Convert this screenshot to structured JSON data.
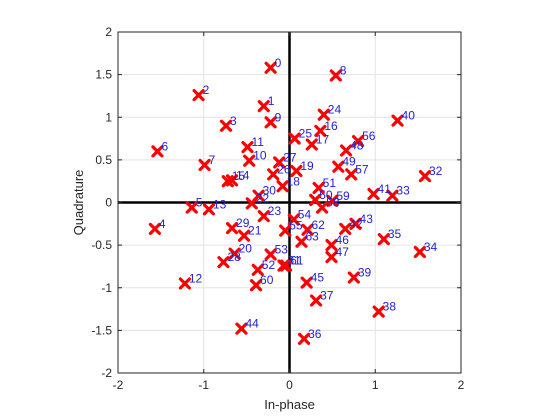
{
  "chart_data": {
    "type": "scatter",
    "xlabel": "In-phase",
    "ylabel": "Quadrature",
    "xlim": [
      -2,
      2
    ],
    "ylim": [
      -2,
      2
    ],
    "xticks": [
      -2,
      -1,
      0,
      1,
      2
    ],
    "yticks": [
      -2,
      -1.5,
      -1,
      -0.5,
      0,
      0.5,
      1,
      1.5,
      2
    ],
    "grid": true,
    "marker": "x",
    "marker_color": "#ff0000",
    "label_color": "#1f1fd6",
    "axis_line_color": "#000000",
    "points": [
      {
        "label": "0",
        "x": -0.22,
        "y": 1.58
      },
      {
        "label": "1",
        "x": -0.3,
        "y": 1.13
      },
      {
        "label": "2",
        "x": -1.06,
        "y": 1.26
      },
      {
        "label": "3",
        "x": -0.74,
        "y": 0.9
      },
      {
        "label": "4",
        "x": -1.57,
        "y": -0.31
      },
      {
        "label": "5",
        "x": -1.14,
        "y": -0.06
      },
      {
        "label": "6",
        "x": -1.54,
        "y": 0.6
      },
      {
        "label": "7",
        "x": -0.99,
        "y": 0.44
      },
      {
        "label": "8",
        "x": 0.54,
        "y": 1.49
      },
      {
        "label": "9",
        "x": -0.22,
        "y": 0.94
      },
      {
        "label": "10",
        "x": -0.47,
        "y": 0.49
      },
      {
        "label": "11",
        "x": -0.49,
        "y": 0.65
      },
      {
        "label": "12",
        "x": -1.22,
        "y": -0.95
      },
      {
        "label": "13",
        "x": -0.94,
        "y": -0.08
      },
      {
        "label": "14",
        "x": -0.67,
        "y": 0.26
      },
      {
        "label": "15",
        "x": -0.72,
        "y": 0.25
      },
      {
        "label": "16",
        "x": 0.36,
        "y": 0.84
      },
      {
        "label": "17",
        "x": 0.26,
        "y": 0.68
      },
      {
        "label": "18",
        "x": -0.08,
        "y": 0.19
      },
      {
        "label": "19",
        "x": 0.08,
        "y": 0.37
      },
      {
        "label": "20",
        "x": -0.64,
        "y": -0.6
      },
      {
        "label": "21",
        "x": -0.53,
        "y": -0.39
      },
      {
        "label": "22",
        "x": -0.44,
        "y": -0.01
      },
      {
        "label": "23",
        "x": -0.3,
        "y": -0.16
      },
      {
        "label": "24",
        "x": 0.4,
        "y": 1.03
      },
      {
        "label": "25",
        "x": 0.06,
        "y": 0.75
      },
      {
        "label": "26",
        "x": -0.19,
        "y": 0.33
      },
      {
        "label": "27",
        "x": -0.12,
        "y": 0.47
      },
      {
        "label": "28",
        "x": -0.77,
        "y": -0.7
      },
      {
        "label": "29",
        "x": -0.67,
        "y": -0.3
      },
      {
        "label": "30",
        "x": -0.36,
        "y": 0.08
      },
      {
        "label": "31",
        "x": -0.07,
        "y": -0.74
      },
      {
        "label": "32",
        "x": 1.58,
        "y": 0.31
      },
      {
        "label": "33",
        "x": 1.2,
        "y": 0.08
      },
      {
        "label": "34",
        "x": 1.52,
        "y": -0.58
      },
      {
        "label": "35",
        "x": 1.1,
        "y": -0.43
      },
      {
        "label": "36",
        "x": 0.17,
        "y": -1.6
      },
      {
        "label": "37",
        "x": 0.31,
        "y": -1.15
      },
      {
        "label": "38",
        "x": 1.04,
        "y": -1.28
      },
      {
        "label": "39",
        "x": 0.75,
        "y": -0.88
      },
      {
        "label": "40",
        "x": 1.26,
        "y": 0.96
      },
      {
        "label": "41",
        "x": 0.98,
        "y": 0.1
      },
      {
        "label": "42",
        "x": 0.65,
        "y": -0.31
      },
      {
        "label": "43",
        "x": 0.77,
        "y": -0.25
      },
      {
        "label": "44",
        "x": -0.56,
        "y": -1.48
      },
      {
        "label": "45",
        "x": 0.2,
        "y": -0.94
      },
      {
        "label": "46",
        "x": 0.49,
        "y": -0.5
      },
      {
        "label": "47",
        "x": 0.49,
        "y": -0.64
      },
      {
        "label": "48",
        "x": 0.66,
        "y": 0.61
      },
      {
        "label": "49",
        "x": 0.57,
        "y": 0.42
      },
      {
        "label": "50",
        "x": 0.3,
        "y": 0.03
      },
      {
        "label": "51",
        "x": 0.34,
        "y": 0.17
      },
      {
        "label": "52",
        "x": -0.37,
        "y": -0.79
      },
      {
        "label": "53",
        "x": -0.22,
        "y": -0.61
      },
      {
        "label": "54",
        "x": 0.05,
        "y": -0.2
      },
      {
        "label": "55",
        "x": -0.05,
        "y": -0.33
      },
      {
        "label": "56",
        "x": 0.8,
        "y": 0.72
      },
      {
        "label": "57",
        "x": 0.72,
        "y": 0.33
      },
      {
        "label": "58",
        "x": 0.38,
        "y": -0.06
      },
      {
        "label": "59",
        "x": 0.5,
        "y": 0.02
      },
      {
        "label": "60",
        "x": -0.39,
        "y": -0.97
      },
      {
        "label": "61",
        "x": -0.04,
        "y": -0.74
      },
      {
        "label": "62",
        "x": 0.21,
        "y": -0.32
      },
      {
        "label": "63",
        "x": 0.14,
        "y": -0.46
      }
    ]
  }
}
